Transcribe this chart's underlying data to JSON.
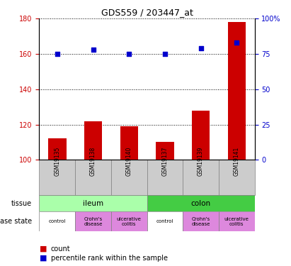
{
  "title": "GDS559 / 203447_at",
  "samples": [
    "GSM19135",
    "GSM19138",
    "GSM19140",
    "GSM19137",
    "GSM19139",
    "GSM19141"
  ],
  "counts": [
    112,
    122,
    119,
    110,
    128,
    178
  ],
  "percentiles": [
    75,
    78,
    75,
    75,
    79,
    83
  ],
  "bar_color": "#cc0000",
  "dot_color": "#0000cc",
  "ylim_left": [
    100,
    180
  ],
  "ylim_right": [
    0,
    100
  ],
  "yticks_left": [
    100,
    120,
    140,
    160,
    180
  ],
  "yticks_right": [
    0,
    25,
    50,
    75,
    100
  ],
  "ytick_labels_right": [
    "0",
    "25",
    "50",
    "75",
    "100%"
  ],
  "tissue_ileum_color": "#aaffaa",
  "tissue_colon_color": "#44cc44",
  "tissue_label": "tissue",
  "disease_state_label": "disease state",
  "legend_count_label": "count",
  "legend_percentile_label": "percentile rank within the sample",
  "sample_bg_color": "#cccccc",
  "bar_width": 0.5,
  "disease_data": [
    [
      0,
      "control",
      "#ffffff"
    ],
    [
      1,
      "Crohn's\ndisease",
      "#dd88dd"
    ],
    [
      2,
      "ulcerative\ncolitis",
      "#dd88dd"
    ],
    [
      3,
      "control",
      "#ffffff"
    ],
    [
      4,
      "Crohn's\ndisease",
      "#dd88dd"
    ],
    [
      5,
      "ulcerative\ncolitis",
      "#dd88dd"
    ]
  ]
}
